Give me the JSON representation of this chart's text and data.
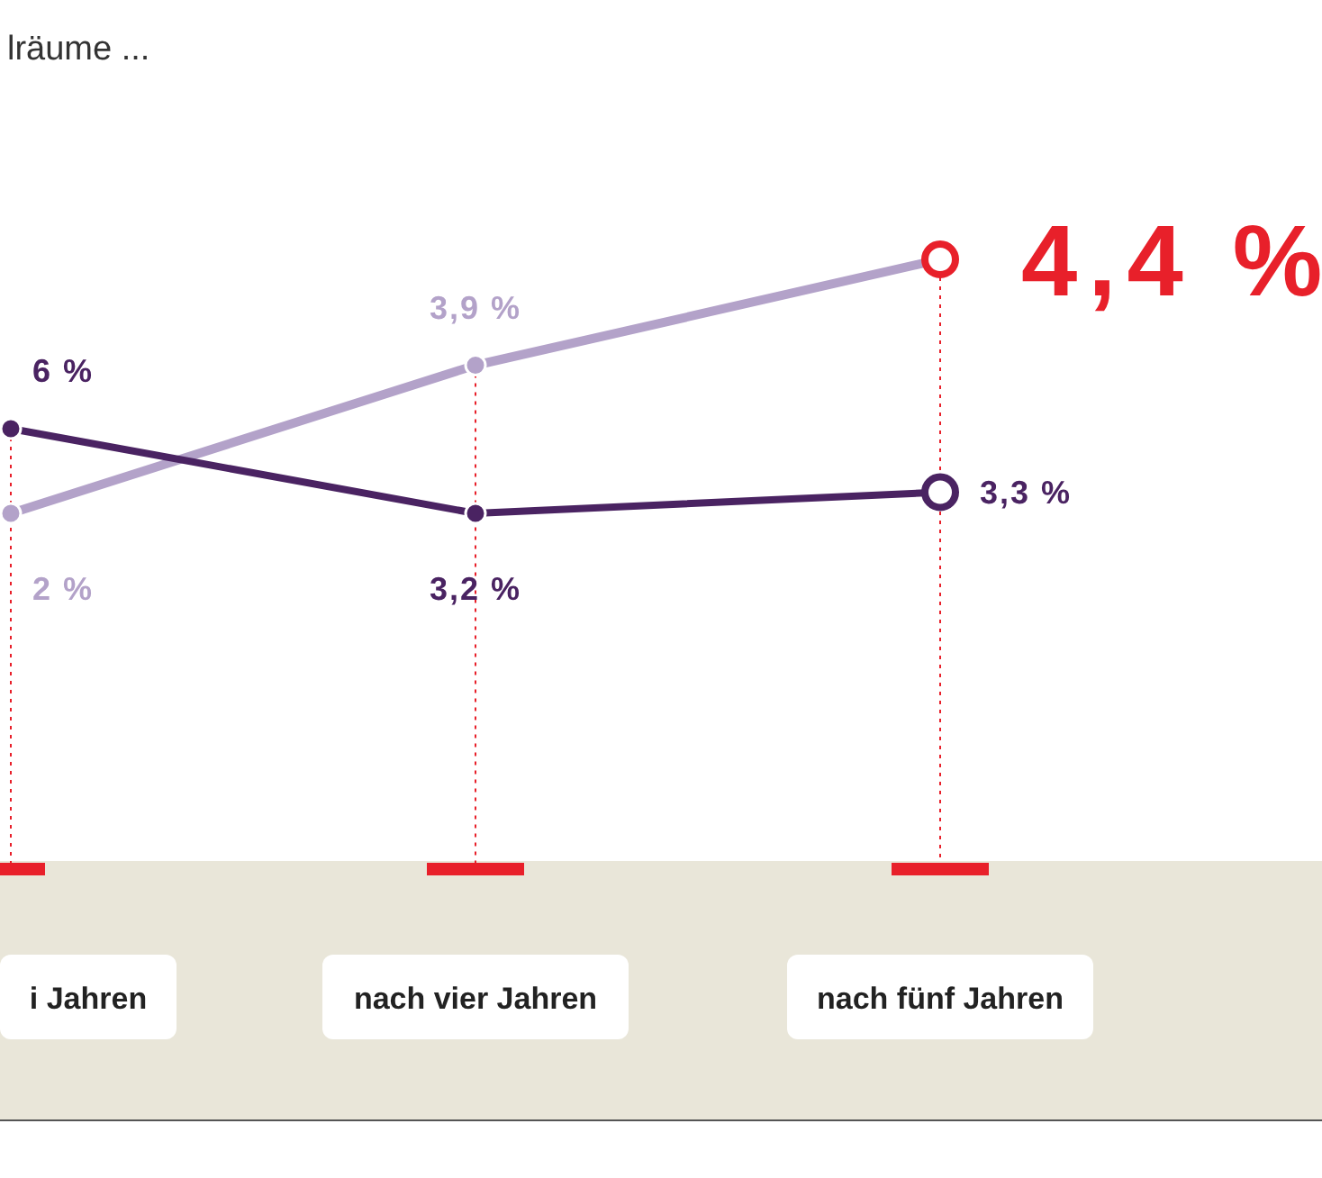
{
  "chart_data": {
    "type": "line",
    "title": "lräume ...",
    "categories": [
      "i Jahren",
      "nach vier Jahren",
      "nach fünf Jahren"
    ],
    "marker": "circle",
    "line_style": "solid",
    "grid": "x",
    "annotations": [
      {
        "text": "6 %",
        "x": "i Jahren",
        "y": 3.6
      },
      {
        "text": "2 %",
        "x": "i Jahren",
        "y": 3.2
      }
    ],
    "series": [
      {
        "color": "#b3a2c9",
        "colors": [
          "#b3a2c9",
          "#b3a2c9",
          "#e8202a"
        ],
        "values": [
          3.2,
          3.9,
          4.4
        ],
        "value_labels": [
          null,
          "3,9 %",
          "4,4 %"
        ]
      },
      {
        "color": "#4a2362",
        "values": [
          3.6,
          3.2,
          3.3
        ],
        "value_labels": [
          null,
          "3,2 %",
          "3,3 %"
        ]
      }
    ]
  }
}
